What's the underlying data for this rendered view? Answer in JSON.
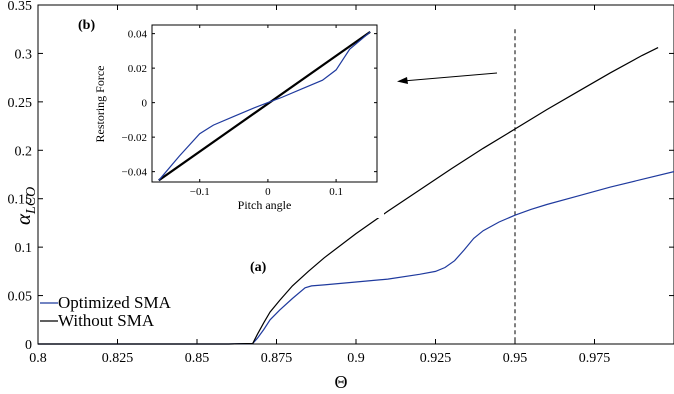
{
  "chart_data": [
    {
      "id": "main",
      "panel_label": "(a)",
      "type": "line",
      "xlabel": "Θ",
      "ylabel_main": "α",
      "ylabel_sub": "LCO",
      "xlim": [
        0.8,
        1.0
      ],
      "ylim": [
        0,
        0.35
      ],
      "xticks": [
        "0.8",
        "0.825",
        "0.85",
        "0.875",
        "0.9",
        "0.925",
        "0.95",
        "0.975"
      ],
      "yticks": [
        "0",
        "0.05",
        "0.1",
        "0.15",
        "0.2",
        "0.25",
        "0.3",
        "0.35"
      ],
      "vline_x": 0.95,
      "legend": {
        "placement": "bottom-left"
      },
      "series": [
        {
          "name": "Optimized SMA",
          "color": "#1f3a9e",
          "x": [
            0.8,
            0.86,
            0.8675,
            0.869,
            0.871,
            0.873,
            0.876,
            0.88,
            0.884,
            0.886,
            0.89,
            0.9,
            0.91,
            0.92,
            0.925,
            0.928,
            0.931,
            0.934,
            0.937,
            0.94,
            0.945,
            0.95,
            0.955,
            0.96,
            0.97,
            0.98,
            0.99,
            1.0
          ],
          "y": [
            0,
            0,
            0.0005,
            0.006,
            0.015,
            0.025,
            0.035,
            0.047,
            0.058,
            0.06,
            0.061,
            0.064,
            0.067,
            0.072,
            0.075,
            0.079,
            0.086,
            0.097,
            0.109,
            0.117,
            0.126,
            0.133,
            0.139,
            0.144,
            0.153,
            0.162,
            0.17,
            0.178
          ]
        },
        {
          "name": "Without SMA",
          "color": "#000000",
          "x": [
            0.8,
            0.86,
            0.8675,
            0.869,
            0.871,
            0.873,
            0.876,
            0.88,
            0.885,
            0.89,
            0.9,
            0.91,
            0.92,
            0.93,
            0.94,
            0.95,
            0.96,
            0.97,
            0.98,
            0.99,
            0.995
          ],
          "y": [
            0,
            0,
            0.0005,
            0.01,
            0.022,
            0.033,
            0.045,
            0.06,
            0.075,
            0.089,
            0.114,
            0.137,
            0.159,
            0.181,
            0.202,
            0.222,
            0.242,
            0.261,
            0.28,
            0.298,
            0.306
          ]
        }
      ]
    },
    {
      "id": "inset",
      "panel_label": "(b)",
      "type": "line",
      "xlabel": "Pitch angle",
      "ylabel": "Restoring Force",
      "xlim": [
        -0.17,
        0.16
      ],
      "ylim": [
        -0.046,
        0.045
      ],
      "xticks": [
        -0.1,
        0,
        0.1
      ],
      "xtick_labels": [
        "−0.1",
        "0",
        "0.1"
      ],
      "yticks": [
        -0.04,
        -0.02,
        0,
        0.02,
        0.04
      ],
      "ytick_labels": [
        "−0.04",
        "−0.02",
        "0",
        "0.02",
        "0.04"
      ],
      "series": [
        {
          "name": "",
          "color": "#000000",
          "x": [
            -0.16,
            0.15
          ],
          "y": [
            -0.045,
            0.041
          ]
        },
        {
          "name": "",
          "color": "#1f3a9e",
          "x": [
            -0.16,
            -0.13,
            -0.1,
            -0.08,
            -0.05,
            -0.02,
            0,
            0.02,
            0.05,
            0.08,
            0.1,
            0.12,
            0.15
          ],
          "y": [
            -0.045,
            -0.031,
            -0.018,
            -0.013,
            -0.008,
            -0.003,
            0,
            0.003,
            0.008,
            0.013,
            0.019,
            0.031,
            0.041
          ]
        }
      ]
    }
  ]
}
